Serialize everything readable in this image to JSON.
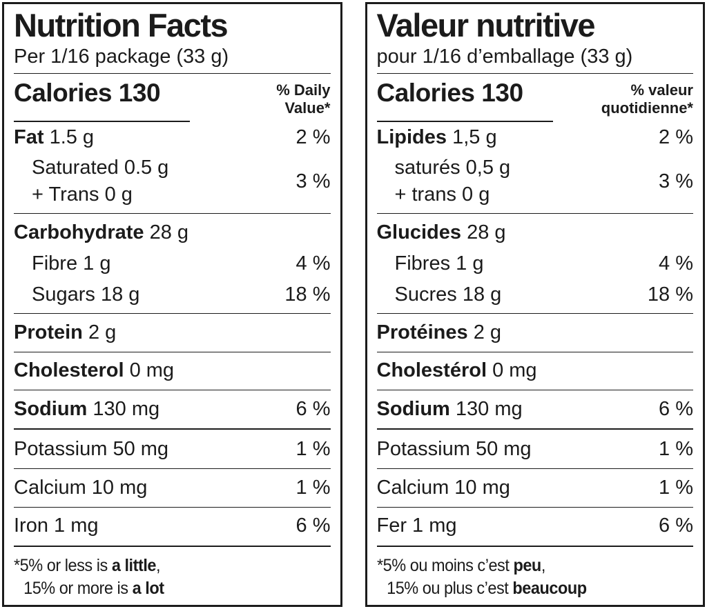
{
  "colors": {
    "ink": "#1b1b1b",
    "background": "#ffffff"
  },
  "panels": {
    "en": {
      "title": "Nutrition Facts",
      "serving": "Per 1/16 package (33 g)",
      "calories_label": "Calories",
      "calories_value": "130",
      "dv_line1": "% Daily",
      "dv_line2": "Value*",
      "fat": {
        "name": "Fat",
        "amount": "1.5 g",
        "pct": "2 %"
      },
      "saturated": {
        "line1": "Saturated 0.5 g",
        "line2": "+ Trans 0 g",
        "pct": "3 %"
      },
      "carbohydrate": {
        "name": "Carbohydrate",
        "amount": "28 g"
      },
      "fibre": {
        "label": "Fibre 1 g",
        "pct": "4 %"
      },
      "sugars": {
        "label": "Sugars 18 g",
        "pct": "18 %"
      },
      "protein": {
        "name": "Protein",
        "amount": "2 g"
      },
      "cholesterol": {
        "name": "Cholesterol",
        "amount": "0 mg"
      },
      "sodium": {
        "name": "Sodium",
        "amount": "130 mg",
        "pct": "6 %"
      },
      "potassium": {
        "label": "Potassium 50 mg",
        "pct": "1 %"
      },
      "calcium": {
        "label": "Calcium 10 mg",
        "pct": "1 %"
      },
      "iron": {
        "label": "Iron 1 mg",
        "pct": "6 %"
      },
      "footnote": {
        "l1_pre": "*5% or less is ",
        "l1_bold": "a little",
        "l1_post": ",",
        "l2_pre": "15% or more is ",
        "l2_bold": "a lot"
      }
    },
    "fr": {
      "title": "Valeur nutritive",
      "serving": "pour 1/16 d’emballage (33 g)",
      "calories_label": "Calories",
      "calories_value": "130",
      "dv_line1": "% valeur",
      "dv_line2": "quotidienne*",
      "fat": {
        "name": "Lipides",
        "amount": "1,5 g",
        "pct": "2 %"
      },
      "saturated": {
        "line1": "saturés 0,5 g",
        "line2": "+ trans 0 g",
        "pct": "3 %"
      },
      "carbohydrate": {
        "name": "Glucides",
        "amount": "28 g"
      },
      "fibre": {
        "label": "Fibres 1 g",
        "pct": "4 %"
      },
      "sugars": {
        "label": "Sucres 18 g",
        "pct": "18 %"
      },
      "protein": {
        "name": "Protéines",
        "amount": "2 g"
      },
      "cholesterol": {
        "name": "Cholestérol",
        "amount": "0 mg"
      },
      "sodium": {
        "name": "Sodium",
        "amount": "130 mg",
        "pct": "6 %"
      },
      "potassium": {
        "label": "Potassium 50 mg",
        "pct": "1 %"
      },
      "calcium": {
        "label": "Calcium 10 mg",
        "pct": "1 %"
      },
      "iron": {
        "label": "Fer 1 mg",
        "pct": "6 %"
      },
      "footnote": {
        "l1_pre": "*5% ou moins c’est ",
        "l1_bold": "peu",
        "l1_post": ",",
        "l2_pre": "15% ou plus c’est ",
        "l2_bold": "beaucoup"
      }
    }
  }
}
